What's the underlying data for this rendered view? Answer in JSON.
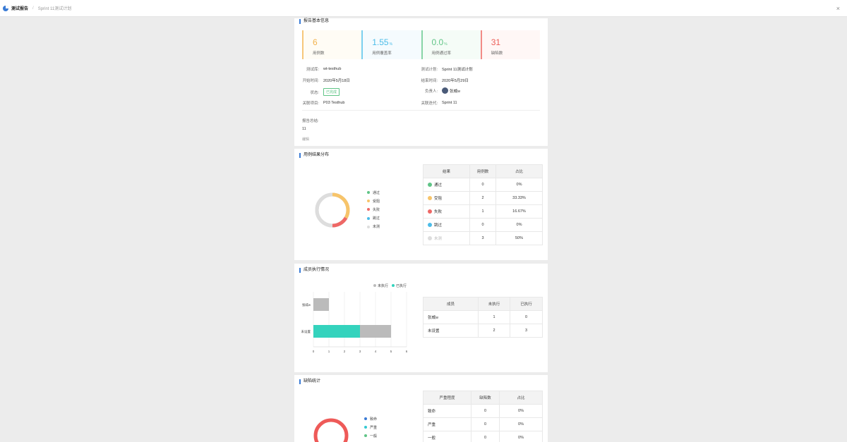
{
  "header": {
    "title": "测试报告",
    "subtitle": "Sprint 11测试计划",
    "close_icon": "×"
  },
  "basic": {
    "section_title": "报告基本信息",
    "cards": [
      {
        "value": "6",
        "unit": "",
        "label": "用例数"
      },
      {
        "value": "1.55",
        "unit": "%",
        "label": "用例覆盖率"
      },
      {
        "value": "0.0",
        "unit": "%",
        "label": "用例通过率"
      },
      {
        "value": "31",
        "unit": "",
        "label": "缺陷数"
      }
    ],
    "fields": {
      "test_lib_label": "测试库:",
      "test_lib": "wt-testhub",
      "plan_label": "测试计划:",
      "plan": "Sprint 11测试计划",
      "start_label": "开始时间:",
      "start": "2020年5月18日",
      "end_label": "结束时间:",
      "end": "2020年5月29日",
      "status_label": "状态:",
      "status": "已完成",
      "owner_label": "负责人:",
      "owner": "张威w",
      "project_label": "关联项目:",
      "project": "P03 Testhub",
      "iteration_label": "关联迭代:",
      "iteration": "Sprint 11"
    },
    "summary_label": "报告总结:",
    "summary": "11",
    "edit_link": "编辑"
  },
  "results": {
    "section_title": "用例结果分布",
    "legend": [
      "通过",
      "受阻",
      "失败",
      "跳过",
      "未测"
    ],
    "table_headers": [
      "结果",
      "用例数",
      "占比"
    ],
    "rows": [
      {
        "name": "通过",
        "count": "0",
        "pct": "0%"
      },
      {
        "name": "受阻",
        "count": "2",
        "pct": "33.33%"
      },
      {
        "name": "失败",
        "count": "1",
        "pct": "16.67%"
      },
      {
        "name": "跳过",
        "count": "0",
        "pct": "0%"
      },
      {
        "name": "未测",
        "count": "3",
        "pct": "50%"
      }
    ],
    "colors": [
      "#5fc486",
      "#f7c46a",
      "#ee6866",
      "#4bbce8",
      "#dddddd"
    ]
  },
  "members": {
    "section_title": "成员执行情况",
    "legend": [
      "未执行",
      "已执行"
    ],
    "table_headers": [
      "成员",
      "未执行",
      "已执行"
    ],
    "rows": [
      {
        "name": "张威w",
        "pending": "1",
        "done": "0"
      },
      {
        "name": "未设置",
        "pending": "2",
        "done": "3"
      }
    ],
    "axis_ticks": [
      "0",
      "1",
      "2",
      "3",
      "4",
      "5",
      "6"
    ],
    "colors": {
      "pending": "#bbbbbb",
      "done": "#34d3bd"
    }
  },
  "defects": {
    "section_title": "缺陷统计",
    "legend": [
      "致命",
      "严重",
      "一般"
    ],
    "legend_colors": [
      "#3a7bd5",
      "#34c9d3",
      "#5fc486"
    ],
    "table_headers": [
      "严重程度",
      "缺陷数",
      "占比"
    ],
    "rows": [
      {
        "name": "致命",
        "count": "0",
        "pct": "0%"
      },
      {
        "name": "严重",
        "count": "0",
        "pct": "0%"
      },
      {
        "name": "一般",
        "count": "0",
        "pct": "0%"
      }
    ],
    "ring_color": "#ee5a58"
  },
  "chart_data": [
    {
      "type": "pie",
      "categories": [
        "通过",
        "受阻",
        "失败",
        "跳过",
        "未测"
      ],
      "values": [
        0,
        2,
        1,
        0,
        3
      ],
      "legend": "right"
    },
    {
      "type": "bar",
      "orientation": "horizontal",
      "stacked": true,
      "categories": [
        "张威w",
        "未设置"
      ],
      "series": [
        {
          "name": "已执行",
          "values": [
            0,
            3
          ]
        },
        {
          "name": "未执行",
          "values": [
            1,
            2
          ]
        }
      ],
      "xlim": [
        0,
        6
      ],
      "legend": "top"
    }
  ]
}
